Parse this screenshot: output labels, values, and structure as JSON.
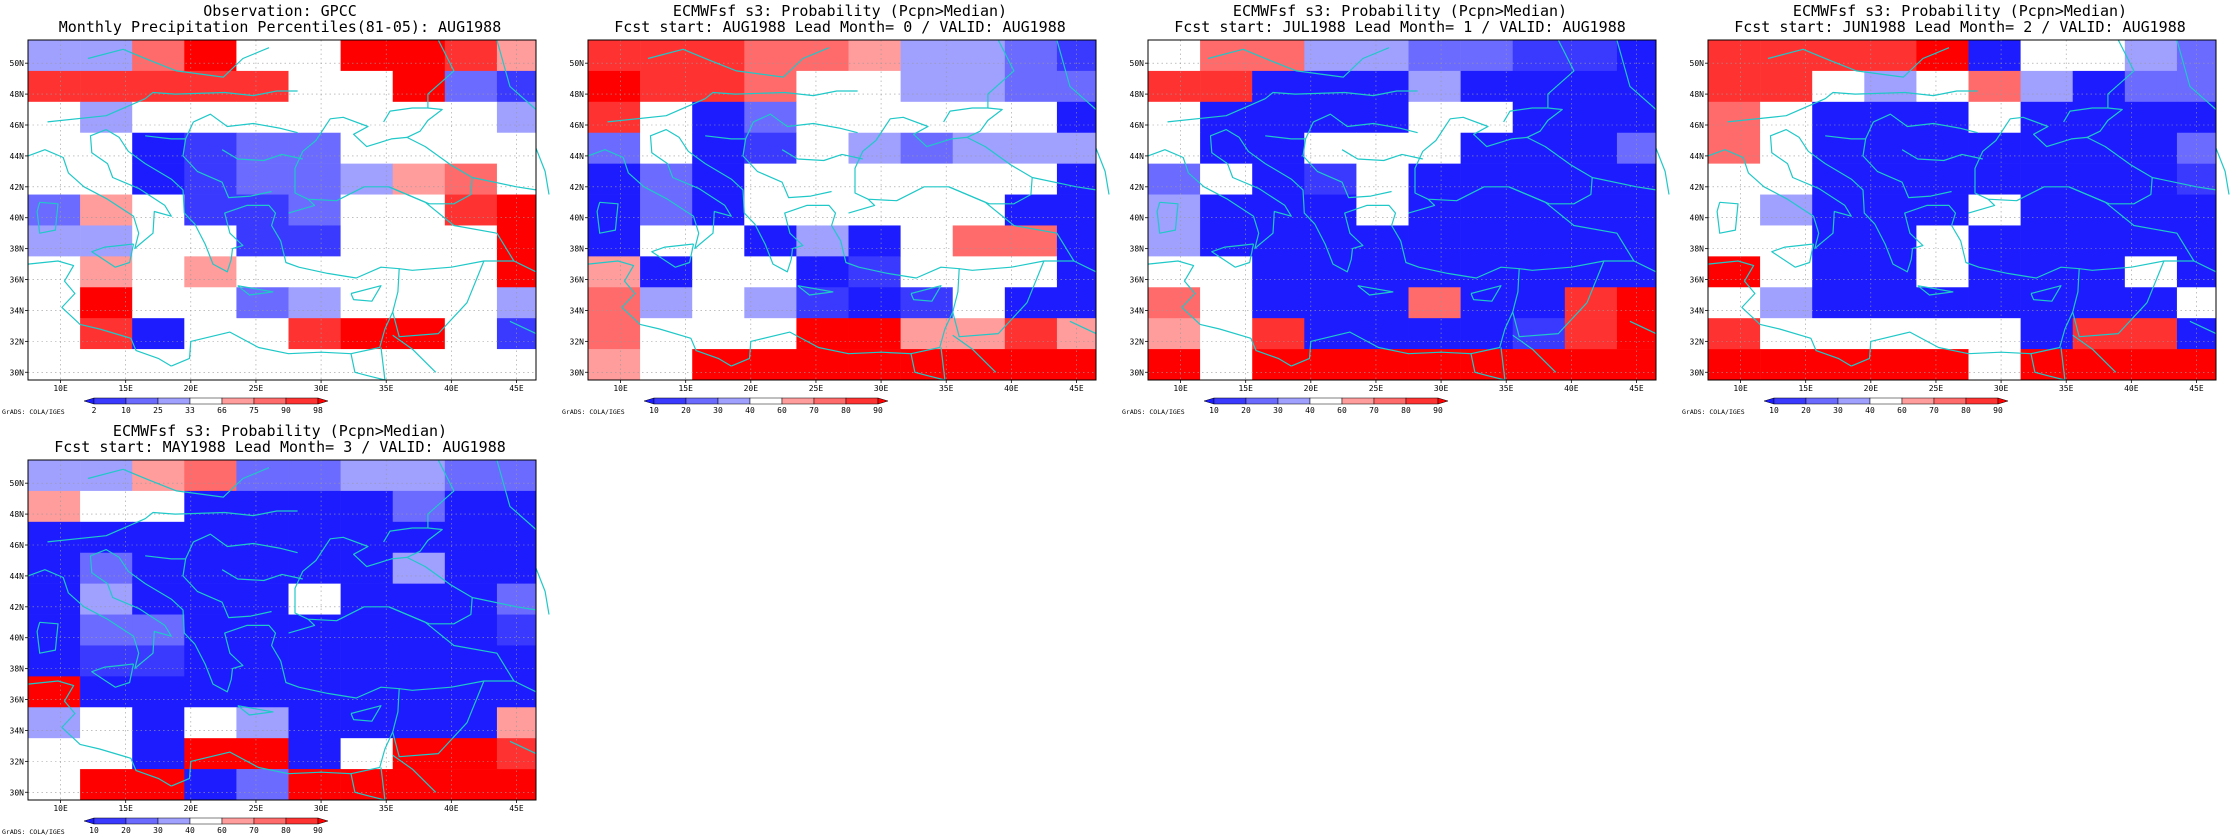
{
  "colors": {
    "bins": [
      "#1c1cff",
      "#3a3aff",
      "#6b6bff",
      "#a0a0ff",
      "#ffffff",
      "#ff9c9c",
      "#ff6a6a",
      "#ff3232",
      "#ff0000"
    ],
    "coast": "#20c8c8",
    "grid": "#9a9a9a"
  },
  "credit": "GrADS: COLA/IGES",
  "lat_labels": [
    "30N",
    "32N",
    "34N",
    "36N",
    "38N",
    "40N",
    "42N",
    "44N",
    "46N",
    "48N",
    "50N"
  ],
  "lon_labels": [
    "10E",
    "15E",
    "20E",
    "25E",
    "30E",
    "35E",
    "40E",
    "45E"
  ],
  "panels": [
    {
      "title1": "Observation: GPCC",
      "title2": "Monthly Precipitation Percentiles(81-05): AUG1988",
      "colorbar": [
        "2",
        "10",
        "25",
        "33",
        "66",
        "75",
        "90",
        "98"
      ],
      "grid": [
        "33684488756",
        "77777448217",
        "43444444434",
        "44012244444",
        "44012235644",
        "25411244788",
        "33441144488",
        "45454444488",
        "48442344434",
        "47044788418",
        "44444444444"
      ]
    },
    {
      "title1": "ECMWFsf s3: Probability (Pcpn>Median)",
      "title2": "Fcst start: AUG1988  Lead Month= 0 / VALID: AUG1988",
      "colorbar": [
        "10",
        "20",
        "30",
        "40",
        "60",
        "70",
        "80",
        "90"
      ],
      "grid": [
        "77766533213",
        "87764433226",
        "74024444407",
        "24014323338",
        "02044444408",
        "02044444006",
        "04403046607",
        "50440144405",
        "63431014008",
        "64448855756",
        "54888888885"
      ]
    },
    {
      "title1": "ECMWFsf s3: Probability (Pcpn>Median)",
      "title2": "Fcst start: JUL1988  Lead Month= 1 / VALID: AUG1988",
      "colorbar": [
        "10",
        "20",
        "30",
        "40",
        "60",
        "70",
        "80",
        "90"
      ],
      "grid": [
        "46633221100",
        "77000300000",
        "40000440000",
        "40044400026",
        "24014000007",
        "30004000007",
        "30000000000",
        "44000000000",
        "64000600788",
        "54700001788",
        "84888888888"
      ]
    },
    {
      "title1": "ECMWFsf s3: Probability (Pcpn>Median)",
      "title2": "Fcst start: JUN1988  Lead Month= 2 / VALID: AUG1988",
      "colorbar": [
        "10",
        "20",
        "30",
        "40",
        "60",
        "70",
        "80",
        "90"
      ],
      "grid": [
        "77778044320",
        "77434630222",
        "64000400000",
        "64000000028",
        "44000000018",
        "43000400002",
        "44004000004",
        "84004000404",
        "43000000044",
        "74444407706",
        "88888488884"
      ]
    },
    {
      "title1": "ECMWFsf s3: Probability (Pcpn>Median)",
      "title2": "Fcst start: MAY1988  Lead Month= 3 / VALID: AUG1988",
      "colorbar": [
        "10",
        "20",
        "30",
        "40",
        "60",
        "70",
        "80",
        "90"
      ],
      "grid": [
        "33562233221",
        "54400002004",
        "00000000006",
        "02000003006",
        "03000400028",
        "02200000013",
        "01100000000",
        "80000000000",
        "34043000058",
        "44088048877",
        "48802888888"
      ]
    }
  ]
}
